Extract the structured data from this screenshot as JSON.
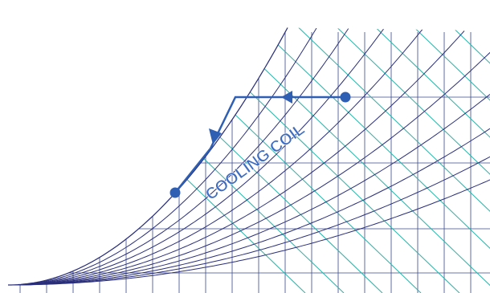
{
  "diagram": {
    "label": "COOLING COIL"
  }
}
